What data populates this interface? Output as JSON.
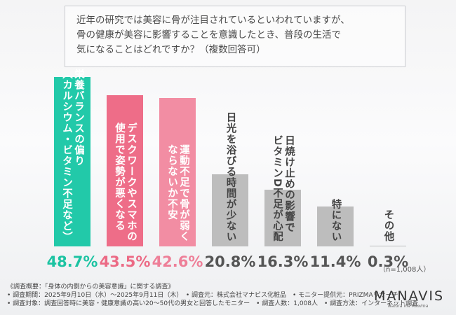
{
  "chart_data": {
    "type": "bar",
    "title": [
      "近年の研究では美容に骨が注目されているといわれていますが、",
      "骨の健康が美容に影響することを意識したとき、普段の生活で",
      "気になることはどれですか？（複数回答可）"
    ],
    "categories": [
      "栄養バランスの偏り\n（カルシウム・ビタミン不足など）",
      "デスクワークやスマホの\n使用で姿勢が悪くなる",
      "運動不足で骨が弱く\nならないか不安",
      "日光を浴びる時間が少ない",
      "日焼け止めの影響で\nビタミンD不足が心配",
      "特にない",
      "その他"
    ],
    "values": [
      48.7,
      43.5,
      42.6,
      20.8,
      16.3,
      11.4,
      0.3
    ],
    "value_labels": [
      "48.7%",
      "43.5%",
      "42.6%",
      "20.8%",
      "16.3%",
      "11.4%",
      "0.3%"
    ],
    "colors": [
      "#22c9a9",
      "#ee6d88",
      "#f28da3",
      "#bdbdbd",
      "#bdbdbd",
      "#bdbdbd",
      "#bdbdbd"
    ],
    "label_colors": [
      "#ffffff",
      "#ffffff",
      "#ffffff",
      "#444444",
      "#444444",
      "#444444",
      "#444444"
    ],
    "value_colors": [
      "#1cc3a2",
      "#ec6a85",
      "#ee7f98",
      "#555555",
      "#555555",
      "#555555",
      "#555555"
    ],
    "sample_size": "（n=1,008人）",
    "notes": [
      "《調査概要：「身体の内側からの美容意識」に関する調査》",
      "• 調査期間：2025年9月10日（水）～2025年9月11日（木）　• 調査元：株式会社マナビス化粧品　• モニター提供元：PRIZMAリサーチ",
      "• 調査対象：調査回答時に美容・健康意識の高い20～50代の男女と回答したモニター　• 調査人数：1,008人　• 調査方法：インターネット調査"
    ],
    "brand": "MANAVIS",
    "brand_tagline": "Natura Via Maxima"
  }
}
